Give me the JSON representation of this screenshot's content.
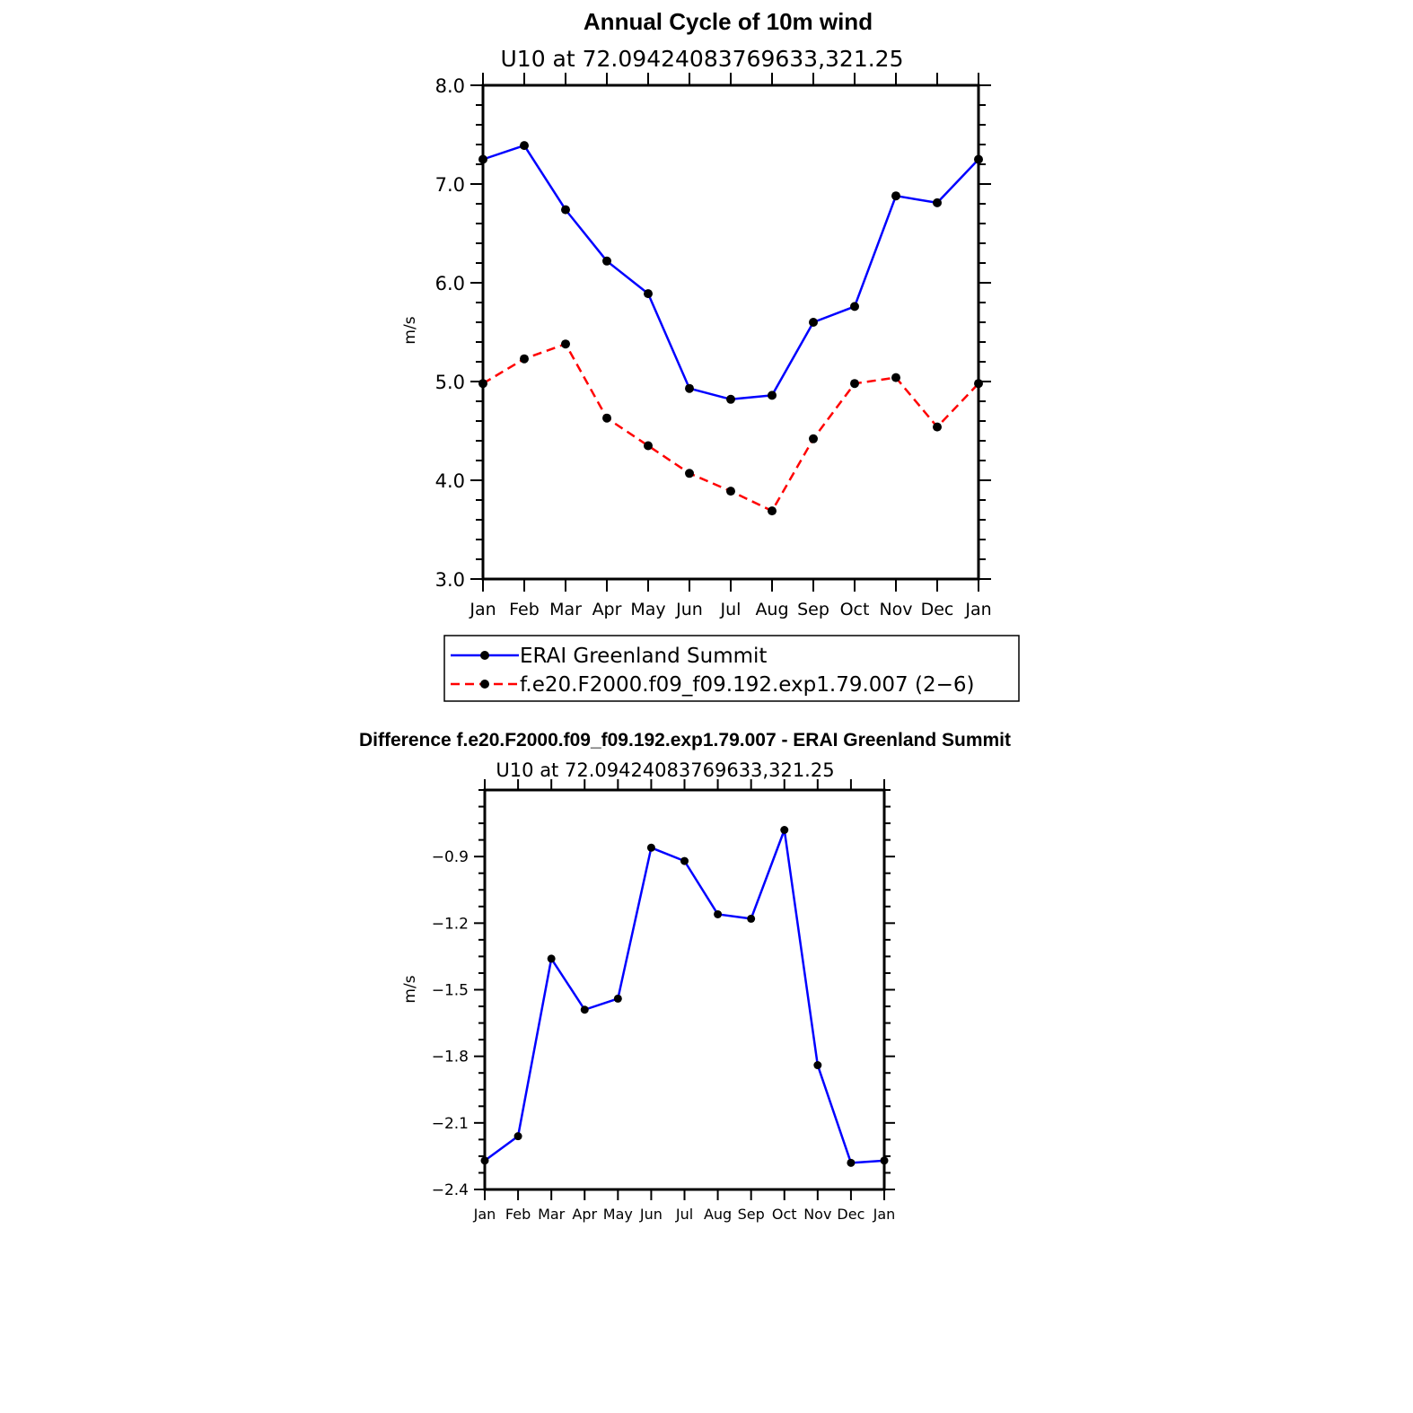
{
  "chart_data": [
    {
      "type": "line",
      "title": "Annual Cycle of 10m wind",
      "subtitle": "U10 at 72.09424083769633,321.25",
      "ylabel": "m/s",
      "xlabel": "",
      "categories": [
        "Jan",
        "Feb",
        "Mar",
        "Apr",
        "May",
        "Jun",
        "Jul",
        "Aug",
        "Sep",
        "Oct",
        "Nov",
        "Dec",
        "Jan"
      ],
      "ylim": [
        3.0,
        8.0
      ],
      "yticks": [
        "3.0",
        "4.0",
        "5.0",
        "6.0",
        "7.0",
        "8.0"
      ],
      "grid": false,
      "legend_position": "below",
      "series": [
        {
          "name": "ERAI Greenland Summit",
          "color": "#0000ff",
          "dash": "solid",
          "values": [
            7.25,
            7.39,
            6.74,
            6.22,
            5.89,
            4.93,
            4.82,
            4.86,
            5.6,
            5.76,
            6.88,
            6.81,
            7.25
          ]
        },
        {
          "name": "f.e20.F2000.f09_f09.192.exp1.79.007 (2−6)",
          "color": "#ff0000",
          "dash": "dashed",
          "values": [
            4.98,
            5.23,
            5.38,
            4.63,
            4.35,
            4.07,
            3.89,
            3.69,
            4.42,
            4.98,
            5.04,
            4.54,
            4.98
          ]
        }
      ]
    },
    {
      "type": "line",
      "title": "Difference f.e20.F2000.f09_f09.192.exp1.79.007 - ERAI Greenland Summit",
      "subtitle": "U10 at 72.09424083769633,321.25",
      "ylabel": "m/s",
      "xlabel": "",
      "categories": [
        "Jan",
        "Feb",
        "Mar",
        "Apr",
        "May",
        "Jun",
        "Jul",
        "Aug",
        "Sep",
        "Oct",
        "Nov",
        "Dec",
        "Jan"
      ],
      "ylim": [
        -2.4,
        -0.6
      ],
      "yticks": [
        "−2.4",
        "−2.1",
        "−1.8",
        "−1.5",
        "−1.2",
        "−0.9"
      ],
      "ytick_values": [
        -2.4,
        -2.1,
        -1.8,
        -1.5,
        -1.2,
        -0.9
      ],
      "grid": false,
      "series": [
        {
          "name": "",
          "color": "#0000ff",
          "dash": "solid",
          "values": [
            -2.27,
            -2.16,
            -1.36,
            -1.59,
            -1.54,
            -0.86,
            -0.92,
            -1.16,
            -1.18,
            -0.78,
            -1.84,
            -2.28,
            -2.27
          ]
        }
      ]
    }
  ]
}
